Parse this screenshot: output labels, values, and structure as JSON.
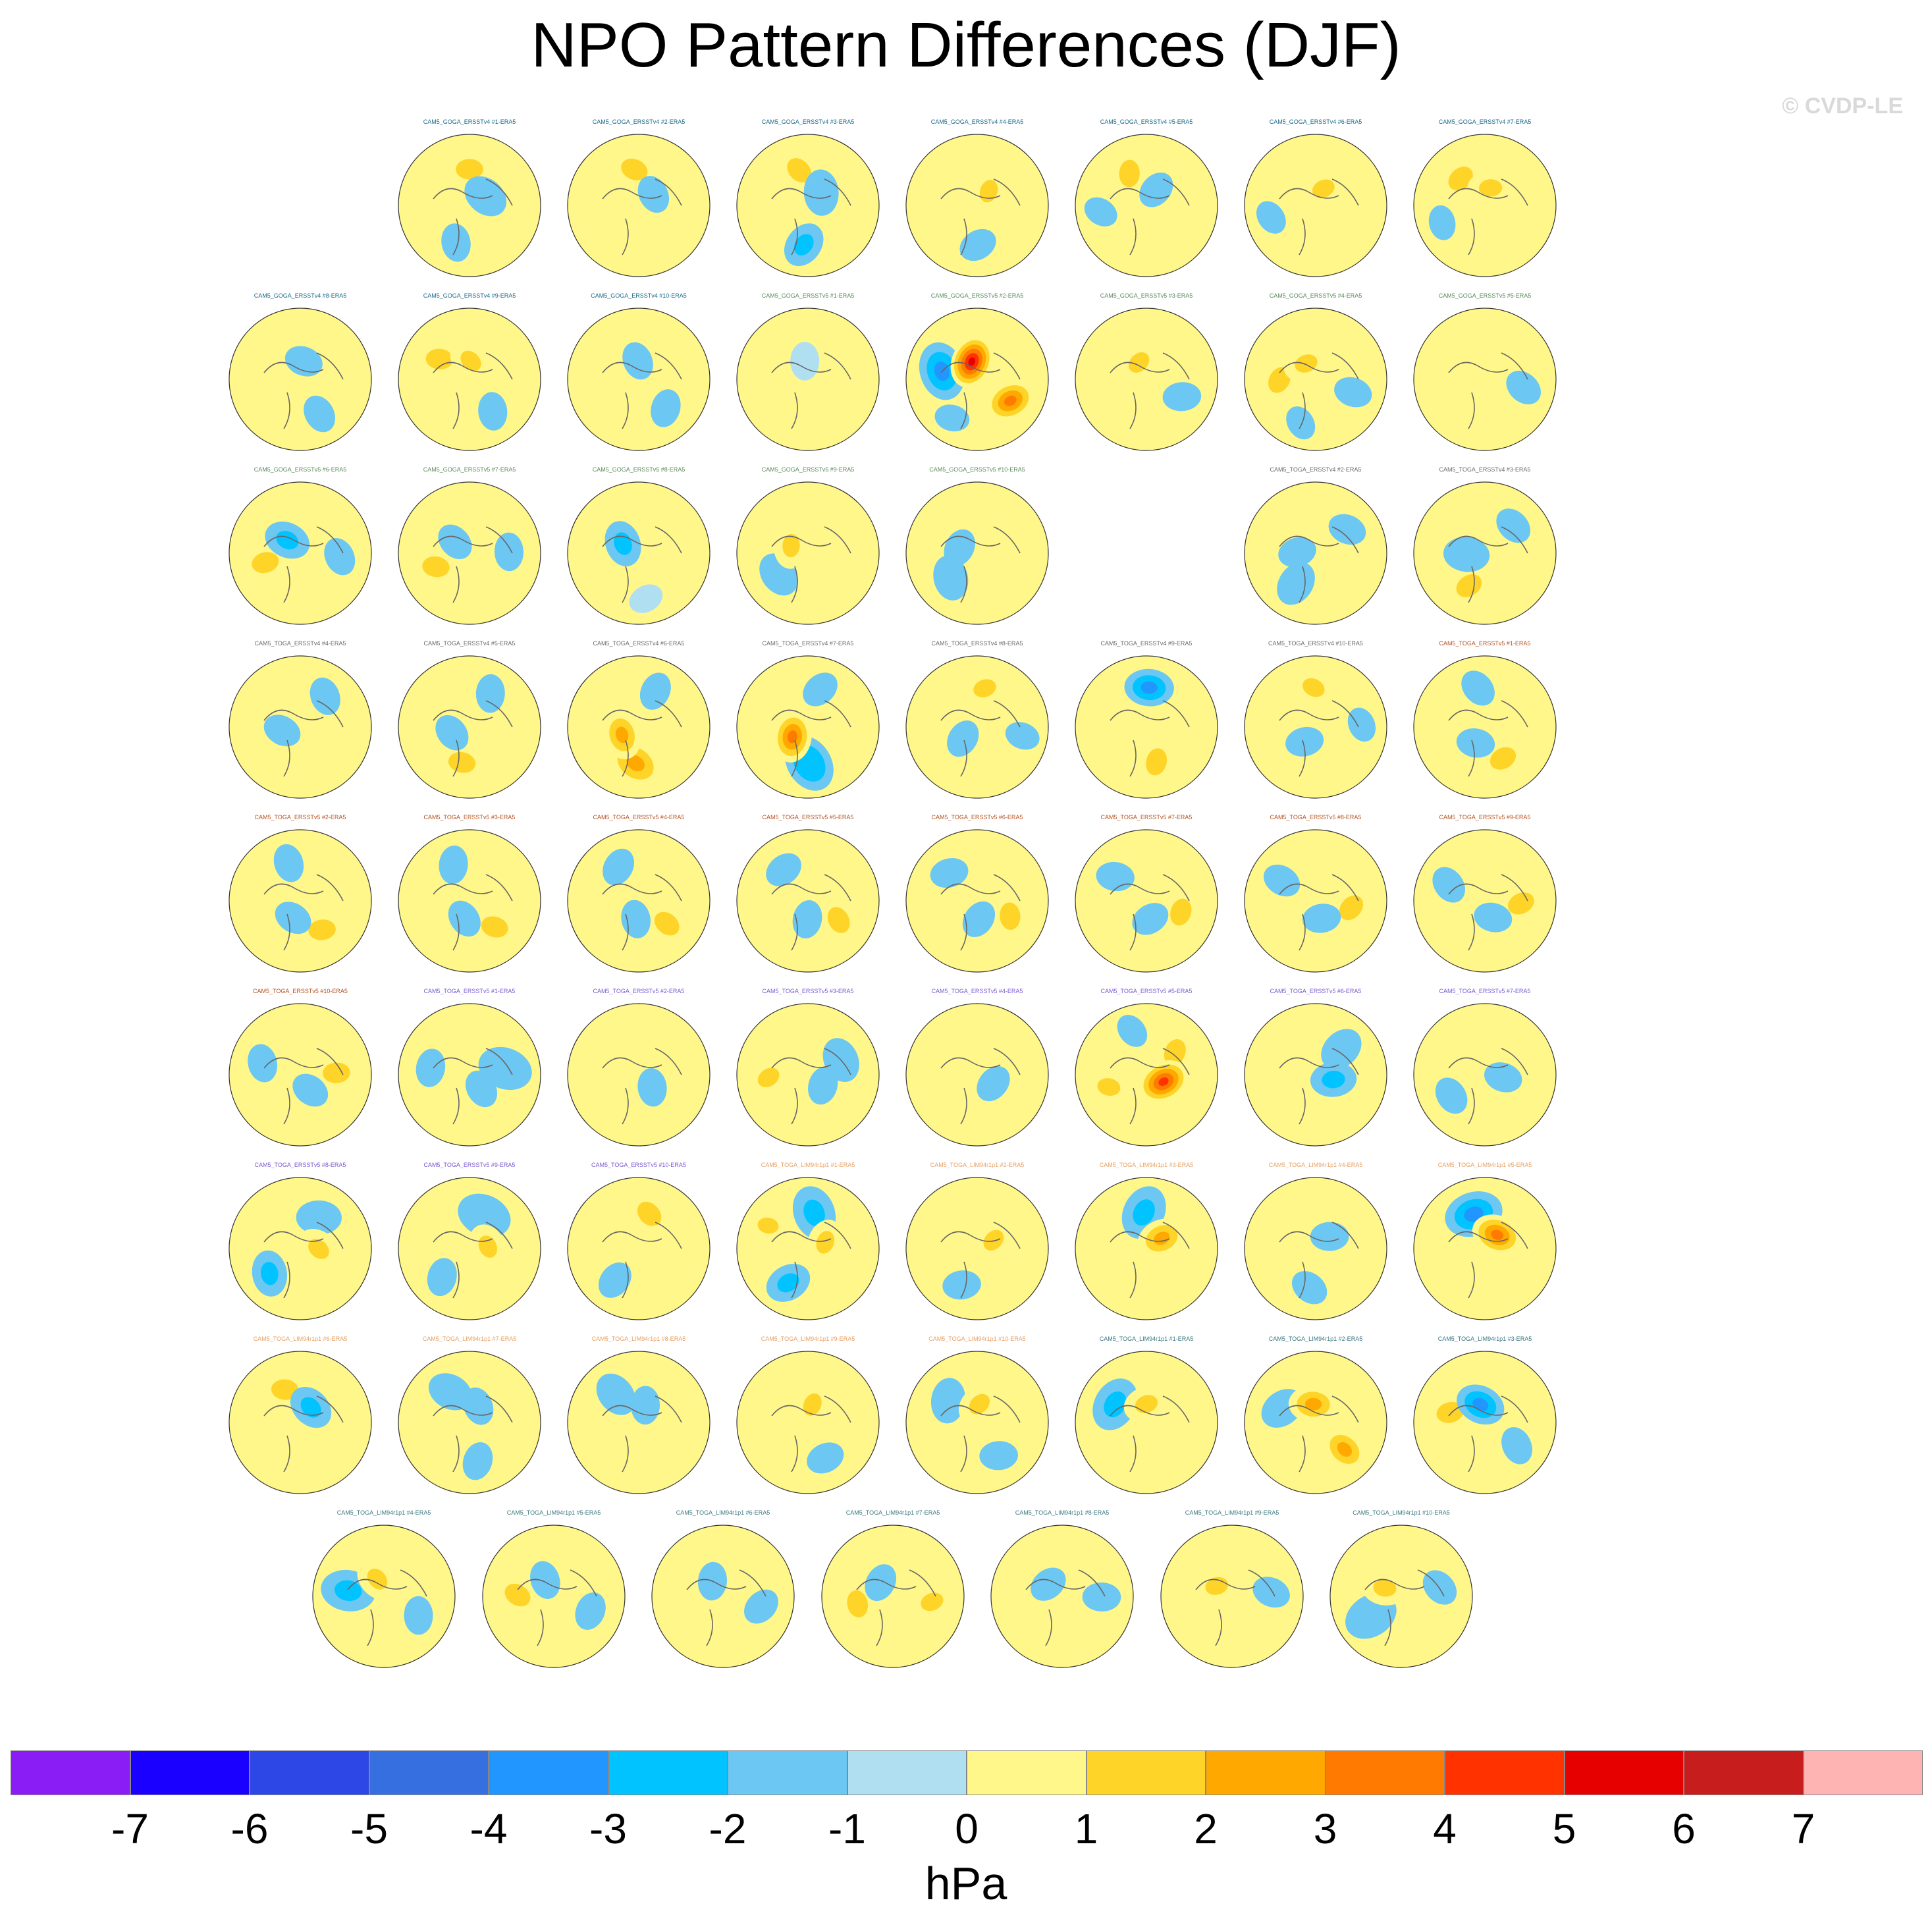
{
  "title": "NPO Pattern Differences (DJF)",
  "copyright": "© CVDP-LE",
  "chart_data": {
    "type": "map-panel-grid",
    "projection": "north-polar-stereographic",
    "variable": "NPO pattern differences",
    "season": "DJF",
    "units": "hPa",
    "colorbar": {
      "ticks": [
        "-7",
        "-6",
        "-5",
        "-4",
        "-3",
        "-2",
        "-1",
        "0",
        "1",
        "2",
        "3",
        "4",
        "5",
        "6",
        "7"
      ],
      "colors": [
        "#8a1cf5",
        "#1a00ff",
        "#2d46e6",
        "#3670e0",
        "#2196ff",
        "#00c3ff",
        "#6cc7f2",
        "#b0dff2",
        "#fff78a",
        "#ffd428",
        "#ffa800",
        "#ff7a00",
        "#ff3200",
        "#e60000",
        "#c81d1d",
        "#ffb4b4"
      ]
    },
    "panels": [
      {
        "label": "CAM5_GOGA_ERSSTv4 #1-ERA5",
        "color": "#1a6a8a",
        "pattern": [
          1.5,
          -1.5,
          -1,
          0.5
        ]
      },
      {
        "label": "CAM5_GOGA_ERSSTv4 #2-ERA5",
        "color": "#1a6a8a",
        "pattern": [
          1.5,
          -1,
          1,
          0.5
        ]
      },
      {
        "label": "CAM5_GOGA_ERSSTv4 #3-ERA5",
        "color": "#1a6a8a",
        "pattern": [
          1.5,
          -1.5,
          -2,
          0.5
        ]
      },
      {
        "label": "CAM5_GOGA_ERSSTv4 #4-ERA5",
        "color": "#1a6a8a",
        "pattern": [
          0.5,
          1.5,
          -1,
          1
        ]
      },
      {
        "label": "CAM5_GOGA_ERSSTv4 #5-ERA5",
        "color": "#1a6a8a",
        "pattern": [
          1.5,
          -1,
          0.5,
          -1
        ]
      },
      {
        "label": "CAM5_GOGA_ERSSTv4 #6-ERA5",
        "color": "#1a6a8a",
        "pattern": [
          1,
          2,
          1,
          -1
        ]
      },
      {
        "label": "CAM5_GOGA_ERSSTv4 #7-ERA5",
        "color": "#1a6a8a",
        "pattern": [
          1.5,
          2,
          0.5,
          -1
        ]
      },
      {
        "label": "CAM5_GOGA_ERSSTv4 #8-ERA5",
        "color": "#1a6a8a",
        "pattern": [
          1,
          -1,
          -1,
          0.5
        ]
      },
      {
        "label": "CAM5_GOGA_ERSSTv4 #9-ERA5",
        "color": "#1a6a8a",
        "pattern": [
          1.5,
          1.5,
          -1,
          0.5
        ]
      },
      {
        "label": "CAM5_GOGA_ERSSTv4 #10-ERA5",
        "color": "#1a6a8a",
        "pattern": [
          0.5,
          -1,
          -1,
          0.5
        ]
      },
      {
        "label": "CAM5_GOGA_ERSSTv5 #1-ERA5",
        "color": "#5a8a5a",
        "pattern": [
          0.5,
          -0.5,
          1,
          0.5
        ]
      },
      {
        "label": "CAM5_GOGA_ERSSTv5 #2-ERA5",
        "color": "#5a8a5a",
        "pattern": [
          -3,
          6,
          4,
          -1
        ]
      },
      {
        "label": "CAM5_GOGA_ERSSTv5 #3-ERA5",
        "color": "#5a8a5a",
        "pattern": [
          0.5,
          1.5,
          -1,
          0.5
        ]
      },
      {
        "label": "CAM5_GOGA_ERSSTv5 #4-ERA5",
        "color": "#5a8a5a",
        "pattern": [
          1.5,
          1.5,
          -1,
          -1
        ]
      },
      {
        "label": "CAM5_GOGA_ERSSTv5 #5-ERA5",
        "color": "#5a8a5a",
        "pattern": [
          1,
          0.5,
          -1,
          0.5
        ]
      },
      {
        "label": "CAM5_GOGA_ERSSTv5 #6-ERA5",
        "color": "#5a8a5a",
        "pattern": [
          2,
          -2,
          -1,
          0.5
        ]
      },
      {
        "label": "CAM5_GOGA_ERSSTv5 #7-ERA5",
        "color": "#5a8a5a",
        "pattern": [
          1.5,
          -1,
          -1,
          0.5
        ]
      },
      {
        "label": "CAM5_GOGA_ERSSTv5 #8-ERA5",
        "color": "#5a8a5a",
        "pattern": [
          0.5,
          -2,
          1,
          -0.5
        ]
      },
      {
        "label": "CAM5_GOGA_ERSSTv5 #9-ERA5",
        "color": "#5a8a5a",
        "pattern": [
          -1,
          1.5,
          0.5,
          0.5
        ]
      },
      {
        "label": "CAM5_GOGA_ERSSTv5 #10-ERA5",
        "color": "#5a8a5a",
        "pattern": [
          -1,
          -1,
          1,
          0.5
        ]
      },
      null,
      {
        "label": "CAM5_TOGA_ERSSTv4 #2-ERA5",
        "color": "#6a6a6a",
        "pattern": [
          -1,
          -1,
          -1,
          0.5
        ]
      },
      {
        "label": "CAM5_TOGA_ERSSTv4 #3-ERA5",
        "color": "#6a6a6a",
        "pattern": [
          2,
          -1.5,
          -1,
          0.5
        ]
      },
      {
        "label": "CAM5_TOGA_ERSSTv4 #4-ERA5",
        "color": "#6a6a6a",
        "pattern": [
          0.5,
          -1,
          -1,
          0.5
        ]
      },
      {
        "label": "CAM5_TOGA_ERSSTv4 #5-ERA5",
        "color": "#6a6a6a",
        "pattern": [
          2,
          -1,
          -1,
          0.5
        ]
      },
      {
        "label": "CAM5_TOGA_ERSSTv4 #6-ERA5",
        "color": "#6a6a6a",
        "pattern": [
          3,
          2.5,
          -1,
          0.5
        ]
      },
      {
        "label": "CAM5_TOGA_ERSSTv4 #7-ERA5",
        "color": "#6a6a6a",
        "pattern": [
          -2.5,
          4,
          -1,
          0.5
        ]
      },
      {
        "label": "CAM5_TOGA_ERSSTv4 #8-ERA5",
        "color": "#6a6a6a",
        "pattern": [
          0.5,
          -1,
          2,
          -1
        ]
      },
      {
        "label": "CAM5_TOGA_ERSSTv4 #9-ERA5",
        "color": "#6a6a6a",
        "pattern": [
          1.5,
          1,
          -3,
          0.5
        ]
      },
      {
        "label": "CAM5_TOGA_ERSSTv4 #10-ERA5",
        "color": "#6a6a6a",
        "pattern": [
          0.5,
          -1,
          2,
          -1
        ]
      },
      {
        "label": "CAM5_TOGA_ERSSTv5 #1-ERA5",
        "color": "#b4501e",
        "pattern": [
          2,
          -1,
          -1,
          0.5
        ]
      },
      {
        "label": "CAM5_TOGA_ERSSTv5 #2-ERA5",
        "color": "#b4501e",
        "pattern": [
          2,
          -1,
          -1,
          0.5
        ]
      },
      {
        "label": "CAM5_TOGA_ERSSTv5 #3-ERA5",
        "color": "#b4501e",
        "pattern": [
          2,
          -1,
          -1,
          0.5
        ]
      },
      {
        "label": "CAM5_TOGA_ERSSTv5 #4-ERA5",
        "color": "#b4501e",
        "pattern": [
          2,
          -1,
          -1,
          0.5
        ]
      },
      {
        "label": "CAM5_TOGA_ERSSTv5 #5-ERA5",
        "color": "#b4501e",
        "pattern": [
          2,
          -1,
          -1,
          0.5
        ]
      },
      {
        "label": "CAM5_TOGA_ERSSTv5 #6-ERA5",
        "color": "#b4501e",
        "pattern": [
          2,
          -1,
          -1,
          0.5
        ]
      },
      {
        "label": "CAM5_TOGA_ERSSTv5 #7-ERA5",
        "color": "#b4501e",
        "pattern": [
          2,
          -1,
          -1,
          0.5
        ]
      },
      {
        "label": "CAM5_TOGA_ERSSTv5 #8-ERA5",
        "color": "#b4501e",
        "pattern": [
          2,
          -1,
          -1,
          0.5
        ]
      },
      {
        "label": "CAM5_TOGA_ERSSTv5 #9-ERA5",
        "color": "#b4501e",
        "pattern": [
          2,
          -1,
          -1,
          0.5
        ]
      },
      {
        "label": "CAM5_TOGA_ERSSTv5 #10-ERA5",
        "color": "#b4501e",
        "pattern": [
          2,
          -1,
          -1,
          0.5
        ]
      },
      {
        "label": "CAM5_TOGA_ERSSTv5 #1-ERA5",
        "color": "#7a5ad2",
        "pattern": [
          -1.5,
          -1,
          -1,
          0.5
        ]
      },
      {
        "label": "CAM5_TOGA_ERSSTv5 #2-ERA5",
        "color": "#7a5ad2",
        "pattern": [
          0.5,
          -1,
          1,
          0.5
        ]
      },
      {
        "label": "CAM5_TOGA_ERSSTv5 #3-ERA5",
        "color": "#7a5ad2",
        "pattern": [
          -1,
          -1,
          2,
          1
        ]
      },
      {
        "label": "CAM5_TOGA_ERSSTv5 #4-ERA5",
        "color": "#7a5ad2",
        "pattern": [
          0.5,
          -1,
          1,
          0.5
        ]
      },
      {
        "label": "CAM5_TOGA_ERSSTv5 #5-ERA5",
        "color": "#7a5ad2",
        "pattern": [
          2,
          5,
          2,
          -1
        ]
      },
      {
        "label": "CAM5_TOGA_ERSSTv5 #6-ERA5",
        "color": "#7a5ad2",
        "pattern": [
          -1,
          -2,
          1,
          0.5
        ]
      },
      {
        "label": "CAM5_TOGA_ERSSTv5 #7-ERA5",
        "color": "#7a5ad2",
        "pattern": [
          0.5,
          -1,
          -1,
          0.5
        ]
      },
      {
        "label": "CAM5_TOGA_ERSSTv5 #8-ERA5",
        "color": "#7a5ad2",
        "pattern": [
          -1,
          2,
          -2,
          0.5
        ]
      },
      {
        "label": "CAM5_TOGA_ERSSTv5 #9-ERA5",
        "color": "#7a5ad2",
        "pattern": [
          -1.5,
          2,
          -1,
          0.5
        ]
      },
      {
        "label": "CAM5_TOGA_ERSSTv5 #10-ERA5",
        "color": "#7a5ad2",
        "pattern": [
          2,
          1,
          -1,
          0.5
        ]
      },
      {
        "label": "CAM5_TOGA_LIM94r1p1 #1-ERA5",
        "color": "#e6a064",
        "pattern": [
          -2,
          2,
          -2,
          1.5
        ]
      },
      {
        "label": "CAM5_TOGA_LIM94r1p1 #2-ERA5",
        "color": "#e6a064",
        "pattern": [
          0.5,
          1.5,
          -1,
          0.5
        ]
      },
      {
        "label": "CAM5_TOGA_LIM94r1p1 #3-ERA5",
        "color": "#e6a064",
        "pattern": [
          -2,
          2.5,
          1,
          0.5
        ]
      },
      {
        "label": "CAM5_TOGA_LIM94r1p1 #4-ERA5",
        "color": "#e6a064",
        "pattern": [
          0.5,
          -1,
          -1,
          0.5
        ]
      },
      {
        "label": "CAM5_TOGA_LIM94r1p1 #5-ERA5",
        "color": "#e6a064",
        "pattern": [
          -3,
          4,
          1,
          0.5
        ]
      },
      {
        "label": "CAM5_TOGA_LIM94r1p1 #6-ERA5",
        "color": "#e6a064",
        "pattern": [
          1.5,
          -2,
          1,
          0.5
        ]
      },
      {
        "label": "CAM5_TOGA_LIM94r1p1 #7-ERA5",
        "color": "#e6a064",
        "pattern": [
          -1,
          -1,
          -1,
          0.5
        ]
      },
      {
        "label": "CAM5_TOGA_LIM94r1p1 #8-ERA5",
        "color": "#e6a064",
        "pattern": [
          -1,
          -1,
          1,
          0.5
        ]
      },
      {
        "label": "CAM5_TOGA_LIM94r1p1 #9-ERA5",
        "color": "#e6a064",
        "pattern": [
          0.5,
          2,
          -1,
          0.5
        ]
      },
      {
        "label": "CAM5_TOGA_LIM94r1p1 #10-ERA5",
        "color": "#e6a064",
        "pattern": [
          -1,
          2,
          -1,
          0.5
        ]
      },
      {
        "label": "CAM5_TOGA_LIM94r1p1 #1-ERA5",
        "color": "#3c7882",
        "pattern": [
          -2,
          2,
          1,
          0.5
        ]
      },
      {
        "label": "CAM5_TOGA_LIM94r1p1 #2-ERA5",
        "color": "#3c7882",
        "pattern": [
          -1,
          3,
          2.5,
          1
        ]
      },
      {
        "label": "CAM5_TOGA_LIM94r1p1 #3-ERA5",
        "color": "#3c7882",
        "pattern": [
          2,
          -3,
          -1,
          0.5
        ]
      },
      {
        "label": "CAM5_TOGA_LIM94r1p1 #4-ERA5",
        "color": "#3c7882",
        "pattern": [
          -2,
          2,
          -1,
          0.5
        ]
      },
      {
        "label": "CAM5_TOGA_LIM94r1p1 #5-ERA5",
        "color": "#3c7882",
        "pattern": [
          1.5,
          -1,
          -1,
          0.5
        ]
      },
      {
        "label": "CAM5_TOGA_LIM94r1p1 #6-ERA5",
        "color": "#3c7882",
        "pattern": [
          0.5,
          -1,
          -1,
          0.5
        ]
      },
      {
        "label": "CAM5_TOGA_LIM94r1p1 #7-ERA5",
        "color": "#3c7882",
        "pattern": [
          1.5,
          -1,
          2,
          0.5
        ]
      },
      {
        "label": "CAM5_TOGA_LIM94r1p1 #8-ERA5",
        "color": "#3c7882",
        "pattern": [
          1,
          -1,
          -1,
          0.5
        ]
      },
      {
        "label": "CAM5_TOGA_LIM94r1p1 #9-ERA5",
        "color": "#3c7882",
        "pattern": [
          0.5,
          1.5,
          -1,
          0.5
        ]
      },
      {
        "label": "CAM5_TOGA_LIM94r1p1 #10-ERA5",
        "color": "#3c7882",
        "pattern": [
          -1.5,
          2,
          -1,
          0.5
        ]
      }
    ]
  }
}
